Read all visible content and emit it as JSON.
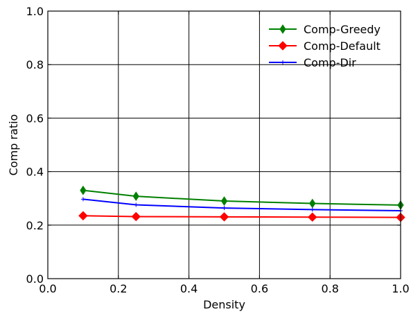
{
  "chart_data": {
    "type": "line",
    "xlabel": "Density",
    "ylabel": "Comp ratio",
    "xlim": [
      0.0,
      1.0
    ],
    "ylim": [
      0.0,
      1.0
    ],
    "xticks": [
      "0.0",
      "0.2",
      "0.4",
      "0.6",
      "0.8",
      "1.0"
    ],
    "yticks": [
      "0.0",
      "0.2",
      "0.4",
      "0.6",
      "0.8",
      "1.0"
    ],
    "grid": true,
    "legend_position": "top-right",
    "x": [
      0.1,
      0.25,
      0.5,
      0.75,
      1.0
    ],
    "series": [
      {
        "name": "Comp-Greedy",
        "color": "#008000",
        "marker": "thin-diamond",
        "values": [
          0.33,
          0.308,
          0.29,
          0.281,
          0.275
        ]
      },
      {
        "name": "Comp-Default",
        "color": "#ff0000",
        "marker": "diamond",
        "values": [
          0.235,
          0.232,
          0.231,
          0.23,
          0.229
        ]
      },
      {
        "name": "Comp-Dir",
        "color": "#0000ff",
        "marker": "plus",
        "values": [
          0.297,
          0.276,
          0.264,
          0.258,
          0.254
        ]
      }
    ]
  }
}
